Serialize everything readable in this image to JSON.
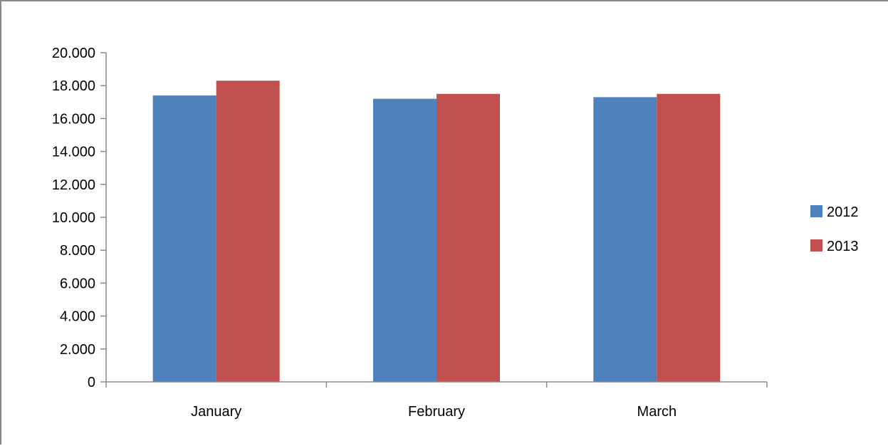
{
  "chart_data": {
    "type": "bar",
    "title": "",
    "xlabel": "",
    "ylabel": "",
    "categories": [
      "January",
      "February",
      "March"
    ],
    "series": [
      {
        "name": "2012",
        "values": [
          17400,
          17200,
          17300
        ],
        "color": "#4f81bd"
      },
      {
        "name": "2013",
        "values": [
          18300,
          17500,
          17500
        ],
        "color": "#c0504d"
      }
    ],
    "ylim": [
      0,
      20000
    ],
    "y_ticks": [
      {
        "value": 0,
        "label": "0"
      },
      {
        "value": 2000,
        "label": "2.000"
      },
      {
        "value": 4000,
        "label": "4.000"
      },
      {
        "value": 6000,
        "label": "6.000"
      },
      {
        "value": 8000,
        "label": "8.000"
      },
      {
        "value": 10000,
        "label": "10.000"
      },
      {
        "value": 12000,
        "label": "12.000"
      },
      {
        "value": 14000,
        "label": "14.000"
      },
      {
        "value": 16000,
        "label": "16.000"
      },
      {
        "value": 18000,
        "label": "18.000"
      },
      {
        "value": 20000,
        "label": "20.000"
      }
    ],
    "grid": false,
    "legend_position": "right",
    "axis_color": "#8a8a8a"
  }
}
